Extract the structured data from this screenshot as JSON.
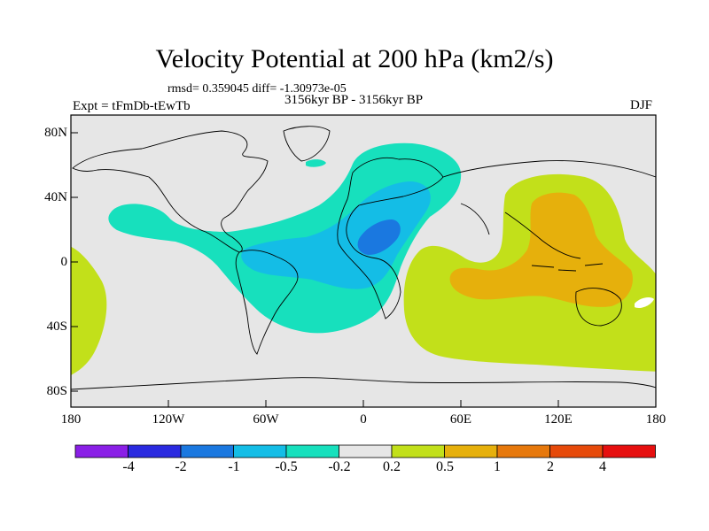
{
  "title": "Velocity Potential at 200 hPa (km2/s)",
  "stats": "rmsd= 0.359045 diff= -1.30973e-05",
  "experiment": "Expt = tFmDb-tEwTb",
  "period": "3156kyr BP - 3156kyr BP",
  "season": "DJF",
  "lat_labels": [
    "80N",
    "40N",
    "0",
    "40S",
    "80S"
  ],
  "lon_labels": [
    "180",
    "120W",
    "60W",
    "0",
    "60E",
    "120E",
    "180"
  ],
  "colorbar": {
    "labels": [
      "-4",
      "-2",
      "-1",
      "-0.5",
      "-0.2",
      "0.2",
      "0.5",
      "1",
      "2",
      "4"
    ],
    "colors": [
      "#8a1fe6",
      "#2a2ae0",
      "#1a78e0",
      "#14bde6",
      "#17e0bd",
      "#e6e6e6",
      "#c2e01a",
      "#e6b00c",
      "#e6780c",
      "#e64a0a",
      "#e60f0f"
    ]
  },
  "colors": {
    "neutral": "#e6e6e6",
    "cyan": "#17e0bd",
    "lightblue": "#14bde6",
    "blue": "#1a78e0",
    "lime": "#c2e01a",
    "orange": "#e6b00c"
  }
}
